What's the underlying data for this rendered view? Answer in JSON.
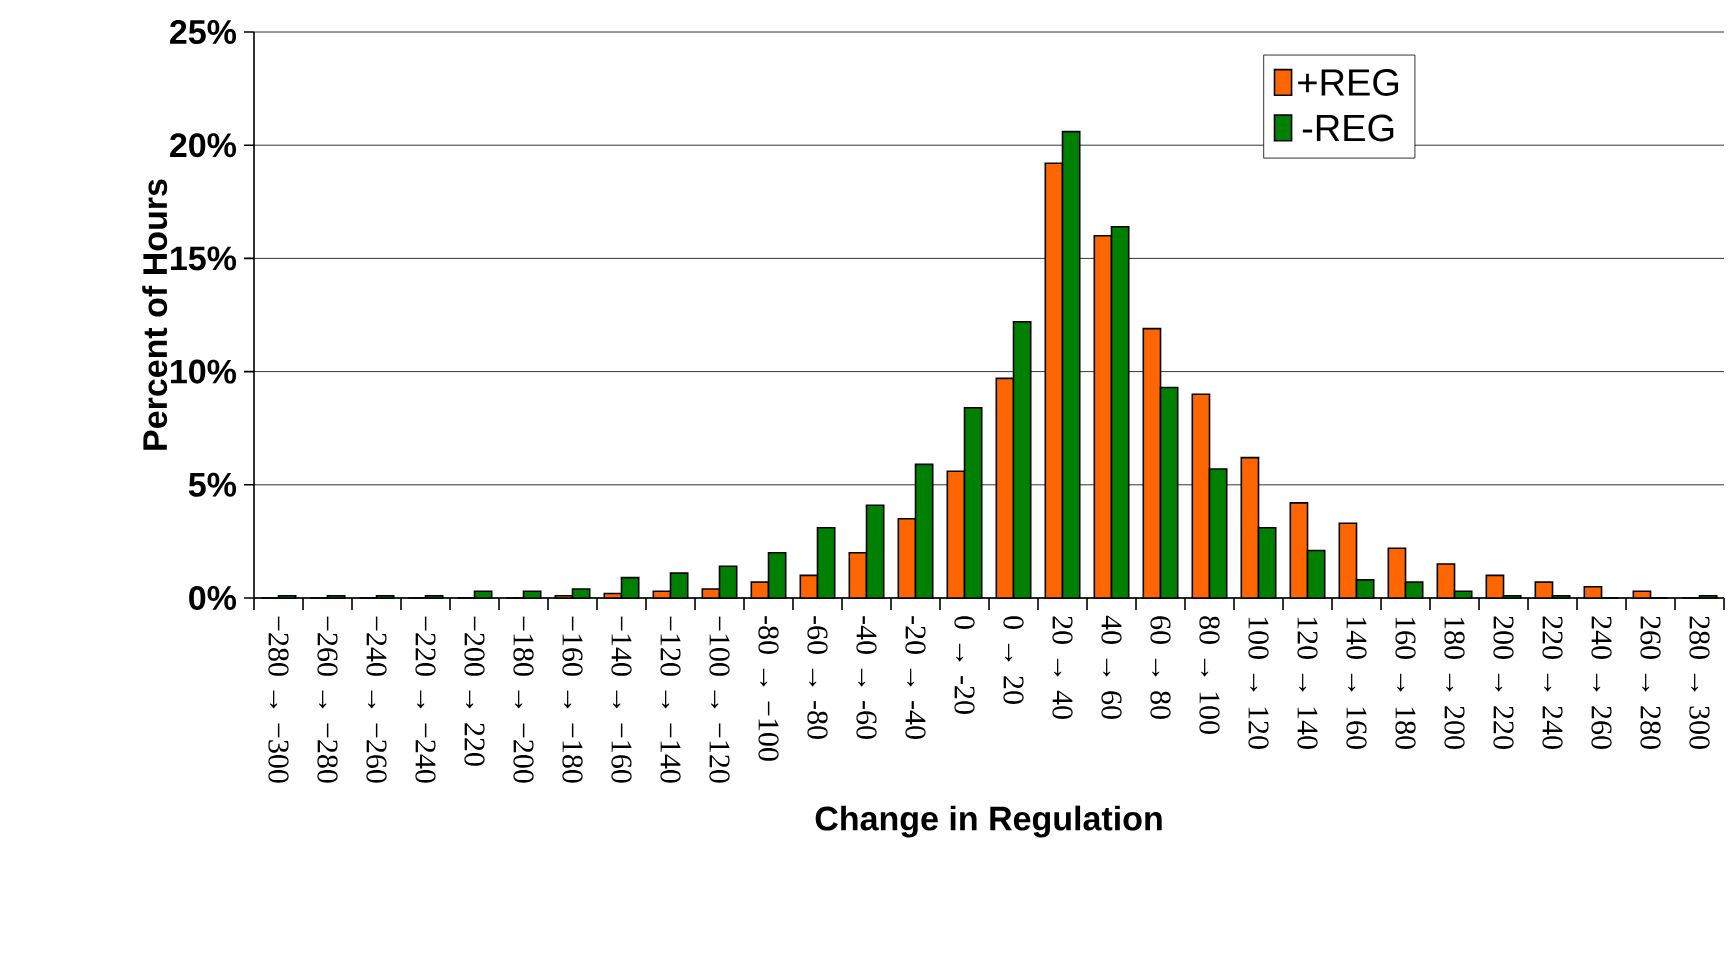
{
  "chart_data": {
    "type": "bar",
    "xlabel": "Change in Regulation",
    "ylabel": "Percent of Hours",
    "categories": [
      "−280 → −300",
      "−260 → −280",
      "−240 → −260",
      "−220 → −240",
      "−200 → 220",
      "−180 → −200",
      "−160 → −180",
      "−140 → −160",
      "−120 → −140",
      "−100 → −120",
      "-80 → −100",
      "-60 → -80",
      "-40 → -60",
      "-20 → -40",
      "0 → -20",
      "0 → 20",
      "20 → 40",
      "40 → 60",
      "60 → 80",
      "80 → 100",
      "100 → 120",
      "120 → 140",
      "140 → 160",
      "160 → 180",
      "180 → 200",
      "200 → 220",
      "220 → 240",
      "240 → 260",
      "260 → 280",
      "280 → 300"
    ],
    "series": [
      {
        "name": "+REG",
        "color": "#ff6600",
        "values": [
          0,
          0,
          0,
          0,
          0,
          0,
          0.1,
          0.2,
          0.3,
          0.4,
          0.7,
          1.0,
          2.0,
          3.5,
          5.6,
          9.7,
          19.2,
          16.0,
          11.9,
          9.0,
          6.2,
          4.2,
          3.3,
          2.2,
          1.5,
          1.0,
          0.7,
          0.5,
          0.3,
          0
        ]
      },
      {
        "name": "-REG",
        "color": "#008000",
        "values": [
          0.1,
          0.1,
          0.1,
          0.1,
          0.3,
          0.3,
          0.4,
          0.9,
          1.1,
          1.4,
          2.0,
          3.1,
          4.1,
          5.9,
          8.4,
          12.2,
          20.6,
          16.4,
          9.3,
          5.7,
          3.1,
          2.1,
          0.8,
          0.7,
          0.3,
          0.1,
          0.1,
          0,
          0,
          0.1
        ]
      }
    ],
    "ylim": [
      0,
      25
    ],
    "yticks": [
      {
        "value": 0,
        "label": "0%"
      },
      {
        "value": 5,
        "label": "5%"
      },
      {
        "value": 10,
        "label": "10%"
      },
      {
        "value": 15,
        "label": "15%"
      },
      {
        "value": 20,
        "label": "20%"
      },
      {
        "value": 25,
        "label": "25%"
      }
    ],
    "grid": "y",
    "legend": "top right"
  }
}
